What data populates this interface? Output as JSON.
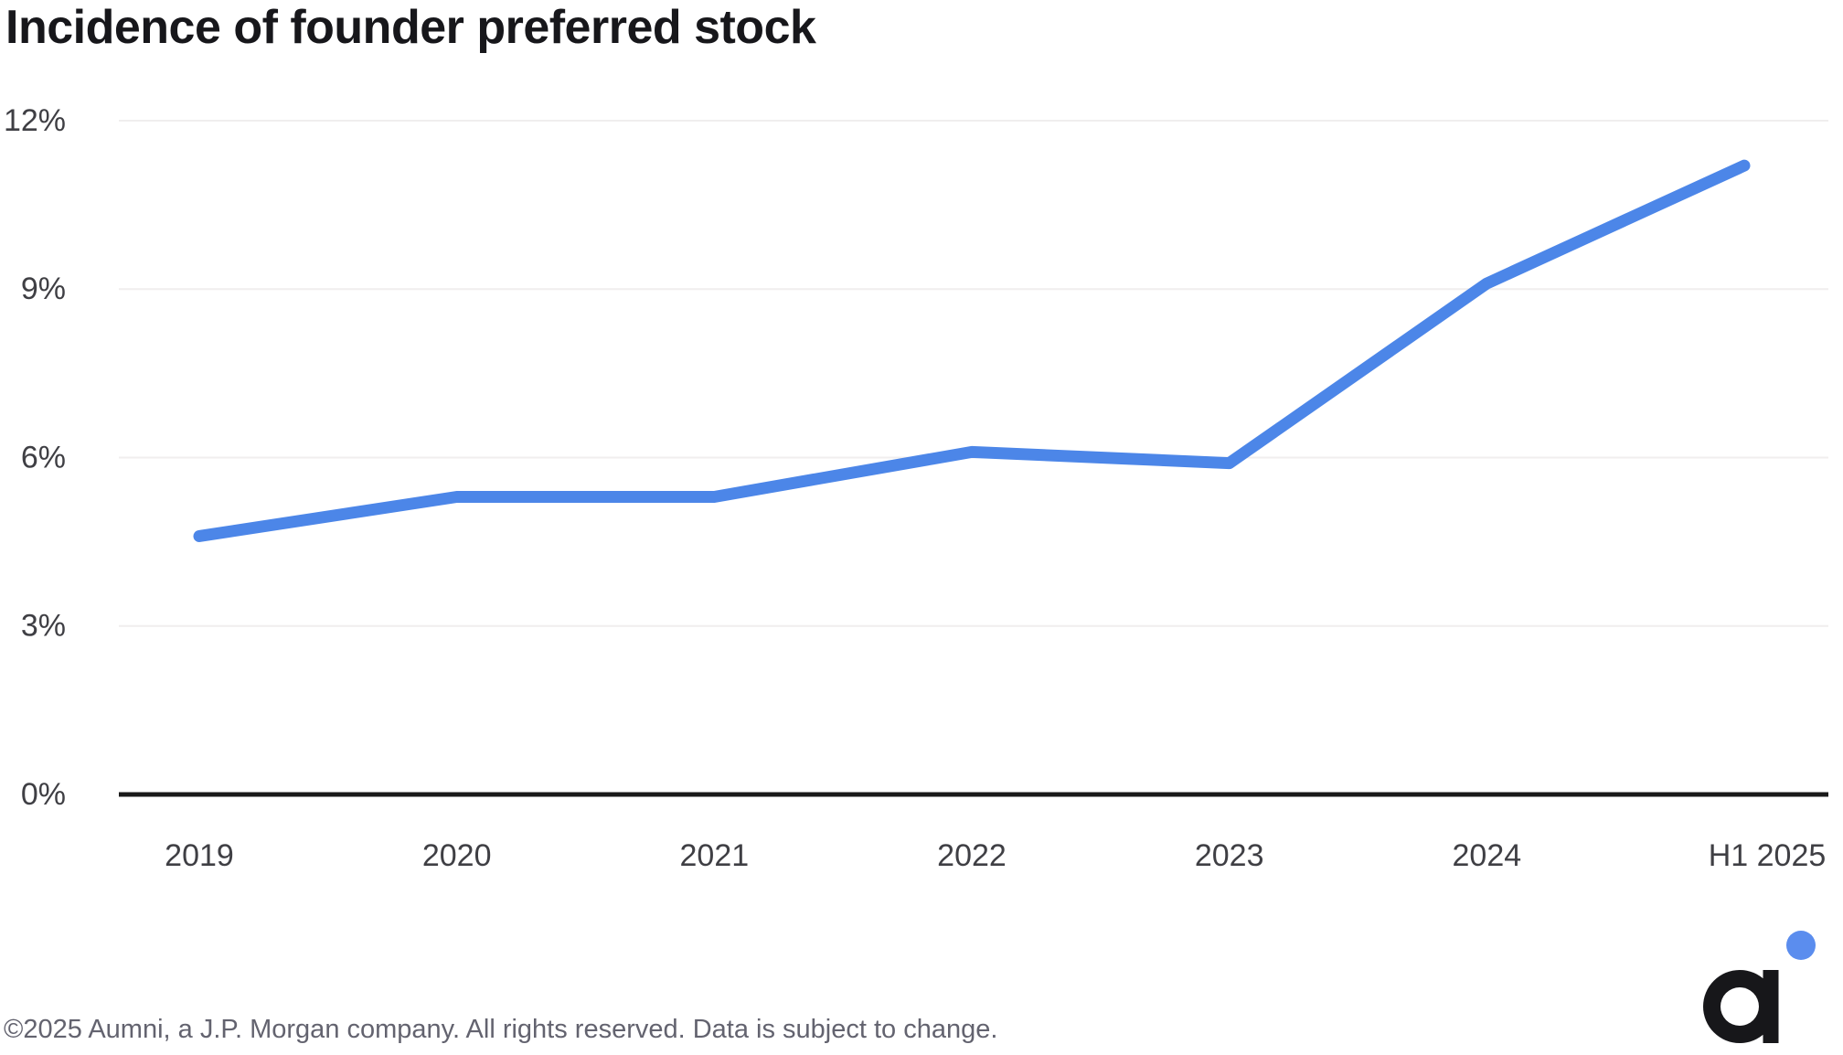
{
  "title": "Incidence of founder preferred stock",
  "footer": {
    "copyright": "©2025 Aumni, a J.P. Morgan company. All rights reserved. Data is subject to change."
  },
  "logo": {
    "mark": "a",
    "mark_color": "#17171a",
    "dot_color": "#5b8dee"
  },
  "chart_data": {
    "type": "line",
    "title": "Incidence of founder preferred stock",
    "categories": [
      "2019",
      "2020",
      "2021",
      "2022",
      "2023",
      "2024",
      "H1 2025"
    ],
    "series": [
      {
        "name": "Incidence of founder preferred stock",
        "values": [
          4.6,
          5.3,
          5.3,
          6.1,
          5.9,
          9.1,
          11.2
        ]
      }
    ],
    "unit": "%",
    "ylim": [
      0,
      12
    ],
    "y_ticks": [
      "12%",
      "9%",
      "6%",
      "3%",
      "0%"
    ],
    "y_tick_values": [
      12,
      9,
      6,
      3,
      0
    ],
    "grid": "horizontal-only",
    "legend": "none",
    "line_color": "#4c86e8",
    "gridline_color": "#f0eeee",
    "axis_color": "#1a1a1a",
    "tick_label_color": "#3f3f44"
  }
}
